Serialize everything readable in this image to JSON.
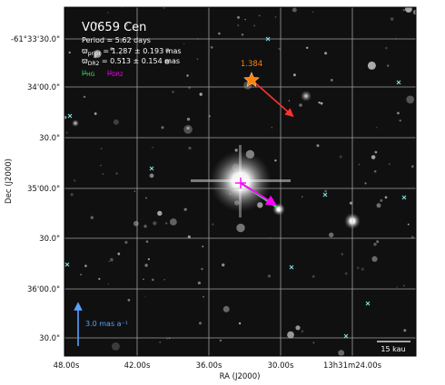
{
  "colors": {
    "background": "#0f0f0f",
    "grid": "#b8b8b8",
    "crossmark": "#7fe3e0",
    "highlight_star": "#ff7f0e",
    "proper_motion_red": "#ff3030",
    "mu_hg": "#33ee66",
    "mu_dr2": "#ff00ff",
    "scale_arrow": "#5aa0ff"
  },
  "figure": {
    "object": "V0659 Cen",
    "period": "Period =   5.62 days",
    "prior": "ϖprior = 1.287 ± 0.193 mas",
    "dr2": "ϖDR2 = 0.513 ± 0.154 mas",
    "mu_hg": "μHG",
    "mu_dr2": "μDR2",
    "star_value": "1.384",
    "scale_arrow": "3.0 mas a⁻¹",
    "scale_bar": "15 kau",
    "xlabel": "RA (J2000)",
    "ylabel": "Dec (J2000)",
    "xticks": [
      "48.00s",
      "42.00s",
      "36.00s",
      "30.00s",
      "13h31m24.00s"
    ],
    "yticks": [
      "-61°33'30.0\"",
      "34'00.0\"",
      "30.0\"",
      "35'00.0\"",
      "30.0\"",
      "36'00.0\"",
      "30.0\""
    ]
  }
}
